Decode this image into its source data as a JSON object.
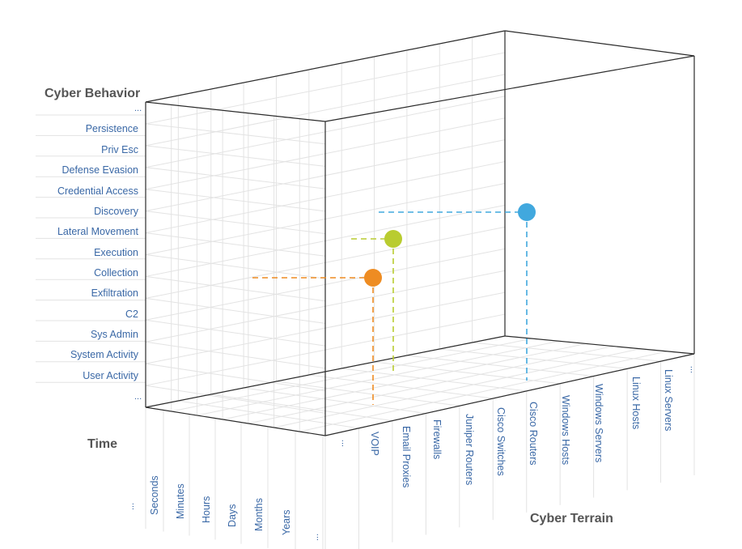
{
  "axes": {
    "behavior": {
      "title": "Cyber Behavior",
      "top_ellipsis": "...",
      "bottom_ellipsis": "...",
      "labels": [
        "Persistence",
        "Priv Esc",
        "Defense Evasion",
        "Credential Access",
        "Discovery",
        "Lateral Movement",
        "Execution",
        "Collection",
        "Exfiltration",
        "C2",
        "Sys Admin",
        "System Activity",
        "User Activity"
      ]
    },
    "time": {
      "title": "Time",
      "start_ellipsis": "...",
      "end_ellipsis": "...",
      "labels": [
        "Seconds",
        "Minutes",
        "Hours",
        "Days",
        "Months",
        "Years"
      ]
    },
    "terrain": {
      "title": "Cyber Terrain",
      "start_ellipsis": "...",
      "end_ellipsis": "...",
      "labels": [
        "VOIP",
        "Email Proxies",
        "Firewalls",
        "Juniper Routers",
        "Cisco Switches",
        "Cisco Routers",
        "Windows Hosts",
        "Windows Servers",
        "Linux Hosts",
        "Linux Servers"
      ]
    }
  },
  "points": [
    {
      "name": "orange-point",
      "color": "#ee8c22"
    },
    {
      "name": "green-point",
      "color": "#b9cc30"
    },
    {
      "name": "blue-point",
      "color": "#41a8de"
    }
  ],
  "colors": {
    "frame": "#2b2b2b",
    "grid": "#e3e3e3",
    "label": "#3a68a6",
    "title": "#555555"
  }
}
